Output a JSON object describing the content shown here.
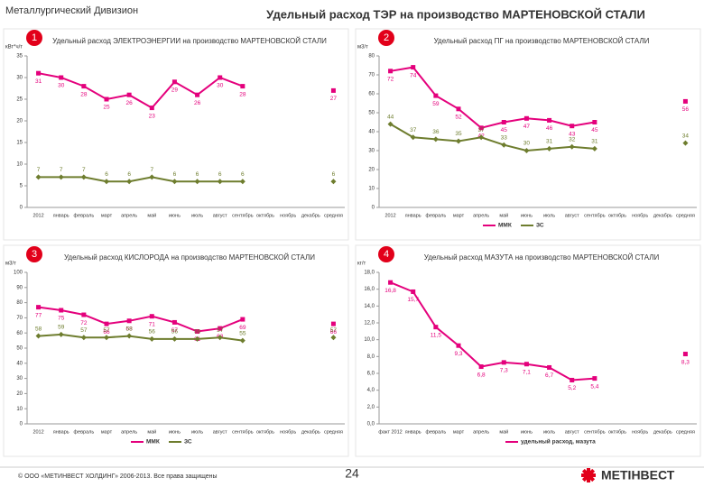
{
  "header": {
    "division": "Металлургический Дивизион",
    "title": "Удельный расход ТЭР на производство МАРТЕНОВСКОЙ СТАЛИ"
  },
  "footer": {
    "copyright": "© ООО «МЕТИНВЕСТ ХОЛДИНГ» 2006-2013. Все права защищены",
    "page": "24",
    "logo": "МЕТІНВЕСТ"
  },
  "chart_data": [
    {
      "type": "line",
      "badge": "1",
      "title": "Удельный расход ЭЛЕКТРОЭНЕРГИИ на производство МАРТЕНОВСКОЙ СТАЛИ",
      "ylabel": "кВт*ч/т",
      "categories": [
        "2012",
        "январь",
        "февраль",
        "март",
        "апрель",
        "май",
        "июнь",
        "июль",
        "август",
        "сентябрь",
        "октябрь",
        "ноябрь",
        "декабрь",
        "средняя"
      ],
      "series": [
        {
          "color": "#e4007c",
          "values": [
            31,
            30,
            28,
            25,
            26,
            23,
            29,
            26,
            30,
            28,
            null,
            null,
            null,
            27
          ]
        },
        {
          "color": "#6e7d2e",
          "values": [
            7,
            7,
            7,
            6,
            6,
            7,
            6,
            6,
            6,
            6,
            null,
            null,
            null,
            6
          ]
        }
      ],
      "ylim": [
        0,
        35
      ],
      "yticks": [
        0,
        5,
        10,
        15,
        20,
        25,
        30,
        35
      ],
      "grid": false
    },
    {
      "type": "line",
      "badge": "2",
      "title": "Удельный расход ПГ на производство МАРТЕНОВСКОЙ СТАЛИ",
      "ylabel": "м3/т",
      "categories": [
        "2012",
        "январь",
        "февраль",
        "март",
        "апрель",
        "май",
        "июнь",
        "июль",
        "август",
        "сентябрь",
        "октябрь",
        "ноябрь",
        "декабрь",
        "средняя"
      ],
      "series": [
        {
          "name": "ММК",
          "color": "#e4007c",
          "values": [
            72,
            74,
            59,
            52,
            42,
            45,
            47,
            46,
            43,
            45,
            null,
            null,
            null,
            56
          ]
        },
        {
          "name": "ЗС",
          "color": "#6e7d2e",
          "values": [
            44,
            37,
            36,
            35,
            37,
            33,
            30,
            31,
            32,
            31,
            null,
            null,
            null,
            34
          ]
        }
      ],
      "ylim": [
        0,
        80
      ],
      "yticks": [
        0,
        10,
        20,
        30,
        40,
        50,
        60,
        70,
        80
      ],
      "grid": false,
      "legend": "bottom"
    },
    {
      "type": "line",
      "badge": "3",
      "title": "Удельный расход КИСЛОРОДА на производство МАРТЕНОВСКОЙ СТАЛИ",
      "ylabel": "м3/т",
      "categories": [
        "2012",
        "январь",
        "февраль",
        "март",
        "апрель",
        "май",
        "июнь",
        "июль",
        "август",
        "сентябрь",
        "октябрь",
        "ноябрь",
        "декабрь",
        "средняя"
      ],
      "series": [
        {
          "name": "ММК",
          "color": "#e4007c",
          "values": [
            77,
            75,
            72,
            66,
            68,
            71,
            67,
            61,
            63,
            69,
            null,
            null,
            null,
            66
          ]
        },
        {
          "name": "ЗС",
          "color": "#6e7d2e",
          "values": [
            58,
            59,
            57,
            57,
            58,
            56,
            56,
            56,
            57,
            55,
            null,
            null,
            null,
            57
          ]
        }
      ],
      "ylim": [
        0,
        100
      ],
      "yticks": [
        0,
        10,
        20,
        30,
        40,
        50,
        60,
        70,
        80,
        90,
        100
      ],
      "grid": false,
      "legend": "bottom"
    },
    {
      "type": "line",
      "badge": "4",
      "title": "Удельный расход МАЗУТА на производство МАРТЕНОВСКОЙ СТАЛИ",
      "ylabel": "кг/т",
      "categories": [
        "факт 2012",
        "январь",
        "февраль",
        "март",
        "апрель",
        "май",
        "июнь",
        "июль",
        "август",
        "сентябрь",
        "октябрь",
        "ноябрь",
        "декабрь",
        "средняя"
      ],
      "series": [
        {
          "name": "удельный расход, мазута",
          "color": "#e4007c",
          "values": [
            16.8,
            15.7,
            11.5,
            9.3,
            6.8,
            7.3,
            7.1,
            6.7,
            5.2,
            5.4,
            null,
            null,
            null,
            8.3
          ],
          "value_labels": [
            "16,8",
            "15,7",
            "11,5",
            "9,3",
            "6,8",
            "7,3",
            "7,1",
            "6,7",
            "5,2",
            "5,4",
            null,
            null,
            null,
            "8,3"
          ]
        }
      ],
      "ylim": [
        0,
        18
      ],
      "yticks": [
        {
          "value": 0,
          "label": "0,0"
        },
        {
          "value": 2,
          "label": "2,0"
        },
        {
          "value": 4,
          "label": "4,0"
        },
        {
          "value": 6,
          "label": "6,0"
        },
        {
          "value": 8,
          "label": "8,0"
        },
        {
          "value": 10,
          "label": "10,0"
        },
        {
          "value": 12,
          "label": "12,0"
        },
        {
          "value": 14,
          "label": "14,0"
        },
        {
          "value": 16,
          "label": "16,0"
        },
        {
          "value": 18,
          "label": "18,0"
        }
      ],
      "grid": false,
      "legend": "bottom"
    }
  ]
}
